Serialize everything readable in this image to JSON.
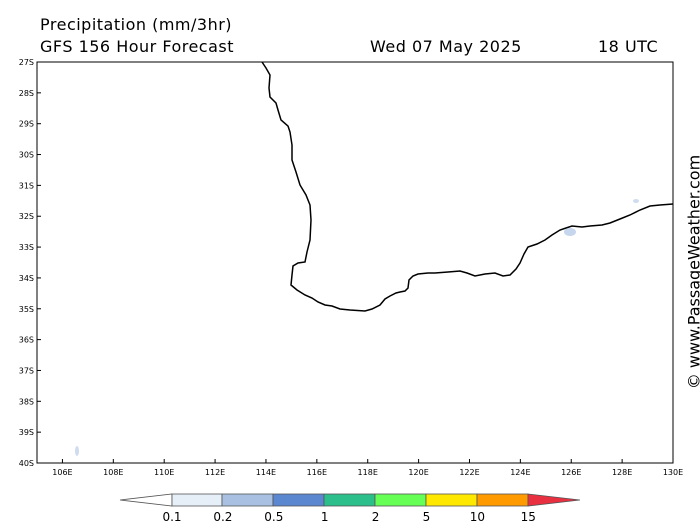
{
  "header": {
    "title": "Precipitation (mm/3hr)",
    "subtitle": "GFS 156 Hour Forecast",
    "date": "Wed 07 May 2025",
    "time": "18 UTC"
  },
  "map": {
    "lat_labels": [
      "27S",
      "28S",
      "29S",
      "30S",
      "31S",
      "32S",
      "33S",
      "34S",
      "35S",
      "36S",
      "37S",
      "38S",
      "39S",
      "40S"
    ],
    "lon_labels": [
      "106E",
      "108E",
      "110E",
      "112E",
      "114E",
      "116E",
      "118E",
      "120E",
      "122E",
      "124E",
      "126E",
      "128E",
      "130E"
    ]
  },
  "legend": {
    "labels": [
      "0.1",
      "0.2",
      "0.5",
      "1",
      "2",
      "5",
      "10",
      "15"
    ]
  },
  "watermark": "© www.PassageWeather.com"
}
